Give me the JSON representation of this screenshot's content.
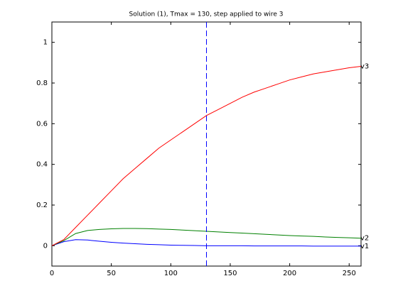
{
  "chart_data": {
    "type": "line",
    "title": "Solution (1), Tmax = 130, step applied to wire 3",
    "x": [
      0,
      10,
      20,
      30,
      40,
      50,
      60,
      70,
      80,
      90,
      100,
      110,
      120,
      130,
      140,
      150,
      160,
      170,
      180,
      190,
      200,
      210,
      220,
      230,
      240,
      250,
      260
    ],
    "series": [
      {
        "name": "v1",
        "color": "#0000ff",
        "values": [
          0,
          0.02,
          0.03,
          0.028,
          0.022,
          0.017,
          0.013,
          0.01,
          0.007,
          0.005,
          0.003,
          0.002,
          0.001,
          0,
          0,
          0,
          0,
          -0.001,
          -0.001,
          -0.001,
          -0.001,
          -0.001,
          -0.002,
          -0.002,
          -0.002,
          -0.002,
          -0.002
        ]
      },
      {
        "name": "v2",
        "color": "#008000",
        "values": [
          0,
          0.025,
          0.06,
          0.075,
          0.08,
          0.083,
          0.085,
          0.085,
          0.084,
          0.082,
          0.08,
          0.077,
          0.074,
          0.071,
          0.068,
          0.065,
          0.062,
          0.059,
          0.056,
          0.053,
          0.05,
          0.048,
          0.046,
          0.043,
          0.041,
          0.039,
          0.037
        ]
      },
      {
        "name": "v3",
        "color": "#ff0000",
        "values": [
          0,
          0.03,
          0.09,
          0.15,
          0.21,
          0.27,
          0.33,
          0.38,
          0.43,
          0.48,
          0.52,
          0.56,
          0.6,
          0.64,
          0.67,
          0.7,
          0.73,
          0.755,
          0.775,
          0.795,
          0.815,
          0.83,
          0.845,
          0.855,
          0.865,
          0.875,
          0.882
        ]
      }
    ],
    "vline_x": 130,
    "vline_color": "#0000ff",
    "xlim": [
      0,
      260
    ],
    "xticks": [
      0,
      50,
      100,
      150,
      200,
      250
    ],
    "ylim": [
      -0.1,
      1.1
    ],
    "yticks": [
      0,
      0.2,
      0.4,
      0.6,
      0.8,
      1
    ]
  }
}
